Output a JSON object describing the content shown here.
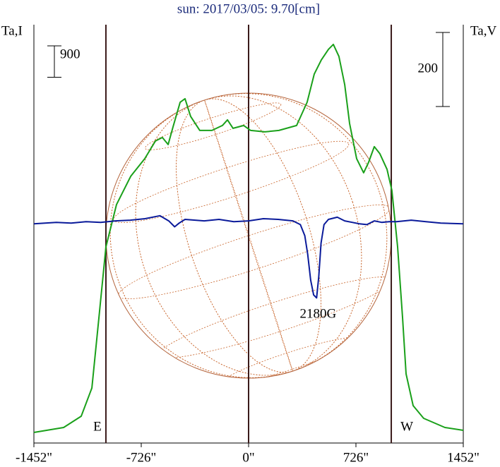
{
  "chart_data": {
    "type": "line",
    "title": "sun: 2017/03/05: 9.70[cm]",
    "ylabel": "Ta,I",
    "y2label": "Ta,V",
    "xlim": [
      -1452,
      1452
    ],
    "xticks": [
      {
        "value": -1452,
        "label": "-1452\""
      },
      {
        "value": -726,
        "label": "-726\""
      },
      {
        "value": 0,
        "label": "0\""
      },
      {
        "value": 726,
        "label": "726\""
      },
      {
        "value": 1452,
        "label": "1452\""
      }
    ],
    "ylim": [
      0,
      12000
    ],
    "y2lim": [
      -600,
      530
    ],
    "center_line": 0,
    "limbs": [
      {
        "label": "E",
        "x": -965
      },
      {
        "label": "W",
        "x": 965
      }
    ],
    "scale_bars": [
      {
        "value": 900,
        "axis": "y"
      },
      {
        "value": 200,
        "axis": "y2"
      }
    ],
    "annotations": [
      {
        "text": "2180G",
        "x": 470
      }
    ],
    "series": [
      {
        "name": "Ta,I",
        "color": "#1aa01a",
        "axis": "y",
        "x": [
          -1452,
          -1251,
          -1132,
          -1060,
          -1012,
          -965,
          -893,
          -797,
          -702,
          -630,
          -583,
          -544,
          -511,
          -463,
          -430,
          -392,
          -330,
          -248,
          -177,
          -143,
          -105,
          -33,
          14,
          110,
          205,
          325,
          396,
          444,
          492,
          540,
          573,
          611,
          650,
          683,
          731,
          778,
          812,
          850,
          888,
          936,
          969,
          1008,
          1041,
          1065,
          1113,
          1184,
          1328,
          1452
        ],
        "values": [
          304,
          445,
          769,
          1579,
          3603,
          5627,
          6841,
          7651,
          8157,
          8663,
          8764,
          8562,
          9068,
          9776,
          9877,
          9371,
          8966,
          8966,
          9108,
          9270,
          9027,
          9108,
          8966,
          8926,
          8966,
          9108,
          9776,
          10586,
          10990,
          11294,
          11436,
          11092,
          10282,
          9169,
          8157,
          7752,
          8056,
          8501,
          8299,
          7853,
          7246,
          5627,
          3603,
          1984,
          1073,
          708,
          445,
          364
        ]
      },
      {
        "name": "Ta,V",
        "color": "#0a1a9a",
        "axis": "y2",
        "x": [
          -1452,
          -1300,
          -1200,
          -1100,
          -1000,
          -900,
          -800,
          -700,
          -600,
          -540,
          -500,
          -470,
          -430,
          -300,
          -200,
          -100,
          0,
          100,
          200,
          300,
          350,
          380,
          400,
          420,
          440,
          460,
          475,
          490,
          510,
          540,
          600,
          650,
          700,
          750,
          800,
          850,
          900,
          950,
          1000,
          1100,
          1200,
          1300,
          1452
        ],
        "values": [
          -8,
          -4,
          -6,
          -2,
          -4,
          0,
          2,
          6,
          14,
          0,
          -16,
          -6,
          4,
          0,
          4,
          -2,
          0,
          6,
          4,
          0,
          -10,
          -40,
          -90,
          -160,
          -200,
          -208,
          -150,
          -60,
          -10,
          4,
          10,
          0,
          -4,
          -8,
          -10,
          0,
          -4,
          -2,
          -2,
          2,
          -2,
          -6,
          -8
        ]
      }
    ]
  }
}
